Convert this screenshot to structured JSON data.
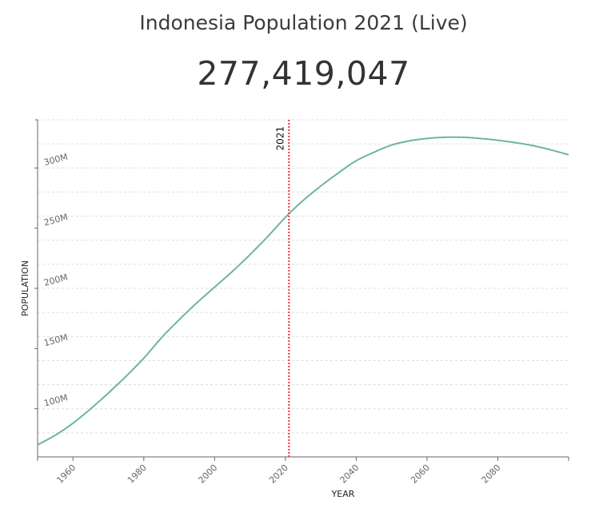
{
  "header": {
    "title": "Indonesia Population 2021 (Live)",
    "live_count": "277,419,047"
  },
  "chart_data": {
    "type": "line",
    "xlabel": "YEAR",
    "ylabel": "POPULATION",
    "xlim": [
      1950,
      2100
    ],
    "ylim": [
      60000000,
      340000000
    ],
    "x_ticks": [
      {
        "value": 1960,
        "label": "1960"
      },
      {
        "value": 1980,
        "label": "1980"
      },
      {
        "value": 2000,
        "label": "2000"
      },
      {
        "value": 2020,
        "label": "2020"
      },
      {
        "value": 2040,
        "label": "2040"
      },
      {
        "value": 2060,
        "label": "2060"
      },
      {
        "value": 2080,
        "label": "2080"
      }
    ],
    "y_ticks": [
      {
        "value": 100000000,
        "label": "100M"
      },
      {
        "value": 150000000,
        "label": "150M"
      },
      {
        "value": 200000000,
        "label": "200M"
      },
      {
        "value": 250000000,
        "label": "250M"
      },
      {
        "value": 300000000,
        "label": "300M"
      }
    ],
    "grid": true,
    "line_color": "#6db5a0",
    "marker": {
      "year": 2021,
      "label": "2021",
      "color": "#ee3344"
    },
    "series": [
      {
        "x": [
          1950,
          1955,
          1960,
          1965,
          1970,
          1975,
          1980,
          1985,
          1990,
          1995,
          2000,
          2005,
          2010,
          2015,
          2020,
          2025,
          2030,
          2035,
          2040,
          2045,
          2050,
          2055,
          2060,
          2065,
          2070,
          2075,
          2080,
          2085,
          2090,
          2095,
          2100
        ],
        "values": [
          70000000,
          78000000,
          88000000,
          100000000,
          113000000,
          127000000,
          142000000,
          159000000,
          174000000,
          188000000,
          201000000,
          214000000,
          228000000,
          243000000,
          259000000,
          273000000,
          285000000,
          296000000,
          306000000,
          313000000,
          319000000,
          322500000,
          324500000,
          325500000,
          325500000,
          324500000,
          323000000,
          321000000,
          318500000,
          315000000,
          311000000
        ]
      }
    ]
  }
}
